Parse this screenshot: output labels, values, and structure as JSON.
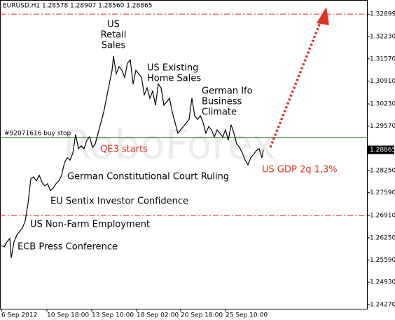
{
  "chart_data": {
    "type": "line",
    "title": "EURUSD,H1  1.28578 1.28907 1.28560 1.28865",
    "watermark": "RoboForex",
    "color": "#000000",
    "x": [
      2,
      6,
      10,
      14,
      16,
      20,
      24,
      28,
      32,
      36,
      40,
      44,
      48,
      52,
      56,
      60,
      64,
      68,
      72,
      76,
      80,
      84,
      88,
      92,
      96,
      100,
      104,
      108,
      112,
      116,
      120,
      124,
      128,
      132,
      136,
      140,
      144,
      148,
      152,
      156,
      160,
      162,
      166,
      170,
      174,
      178,
      182,
      186,
      190,
      194,
      198,
      202,
      206,
      210,
      214,
      218,
      222,
      226,
      230,
      234,
      238,
      242,
      246,
      250,
      254,
      258,
      262,
      266,
      270,
      274,
      278,
      282,
      286,
      290,
      294,
      298,
      302,
      306,
      310,
      314,
      318,
      322,
      326,
      330,
      334,
      338,
      342,
      346,
      350,
      354,
      358,
      362,
      366,
      370,
      374,
      376
    ],
    "values": [
      1.2602,
      1.2598,
      1.2613,
      1.2623,
      1.2565,
      1.2613,
      1.2633,
      1.2644,
      1.2654,
      1.2675,
      1.2727,
      1.28,
      1.2806,
      1.2794,
      1.2811,
      1.279,
      1.2779,
      1.2786,
      1.2765,
      1.2773,
      1.2786,
      1.2794,
      1.2811,
      1.2848,
      1.2863,
      1.2856,
      1.2877,
      1.2932,
      1.289,
      1.2898,
      1.289,
      1.2915,
      1.2925,
      1.2894,
      1.2904,
      1.2936,
      1.2967,
      1.2998,
      1.304,
      1.3082,
      1.3123,
      1.3165,
      1.3113,
      1.3134,
      1.3123,
      1.3102,
      1.3144,
      1.3154,
      1.3082,
      1.3123,
      1.3113,
      1.3102,
      1.305,
      1.3071,
      1.304,
      1.3061,
      1.3019,
      1.3082,
      1.3071,
      1.3019,
      1.3029,
      1.304,
      1.2998,
      1.2967,
      1.2936,
      1.2946,
      1.2956,
      1.2967,
      1.2977,
      1.304,
      1.2988,
      1.2977,
      1.2988,
      1.2967,
      1.2936,
      1.2956,
      1.2946,
      1.2925,
      1.2946,
      1.2936,
      1.2925,
      1.2946,
      1.2915,
      1.2961,
      1.2936,
      1.2904,
      1.2894,
      1.2877,
      1.2856,
      1.2842,
      1.2863,
      1.2873,
      1.2884,
      1.289,
      1.2863,
      1.28865
    ],
    "last_price": 1.28865,
    "xlim": [
      0,
      524
    ],
    "xticks": [
      {
        "value": 2,
        "label": "6 Sep 2012"
      },
      {
        "value": 67,
        "label": "10 Sep 18:00"
      },
      {
        "value": 131,
        "label": "13 Sep 10:00"
      },
      {
        "value": 195,
        "label": "18 Sep 02:00"
      },
      {
        "value": 258,
        "label": "20 Sep 18:00"
      },
      {
        "value": 322,
        "label": "25 Sep 10:00"
      }
    ],
    "ylim": [
      1.2414,
      1.3332
    ],
    "yticks": [
      1.32899,
      {
        "value": 1.3223,
        "label": "1.32230"
      },
      {
        "value": 1.3157,
        "label": "1.31570"
      },
      {
        "value": 1.3091,
        "label": "1.30910"
      },
      {
        "value": 1.3023,
        "label": "1.30230"
      },
      {
        "value": 1.2957,
        "label": "1.29570"
      },
      {
        "value": 1.2825,
        "label": "1.28250"
      },
      {
        "value": 1.2759,
        "label": "1.27590"
      },
      {
        "value": 1.2691,
        "label": "1.26910"
      },
      {
        "value": 1.2625,
        "label": "1.26250"
      },
      {
        "value": 1.2559,
        "label": "1.25590"
      },
      {
        "value": 1.2493,
        "label": "1.24930"
      },
      {
        "value": 1.2427,
        "label": "1.24270"
      }
    ],
    "levels": [
      {
        "value": 1.32899,
        "color": "#e03020"
      },
      {
        "value": 1.2691,
        "color": "#e03020"
      }
    ],
    "stop_order": {
      "label": "#92071616 buy stop",
      "value": 1.2923,
      "color": "#006400"
    },
    "annotations": [
      {
        "lines": [
          "US",
          "Retail",
          "Sales"
        ],
        "color": "#000000"
      },
      {
        "lines": [
          "US Existing",
          "Home Sales"
        ],
        "color": "#000000"
      },
      {
        "lines": [
          "German Ifo",
          "Business",
          "Climate"
        ],
        "color": "#000000"
      },
      {
        "lines": [
          "QE3 starts"
        ],
        "color": "#e03020"
      },
      {
        "lines": [
          "German Constitutional Court Ruling"
        ],
        "color": "#000000"
      },
      {
        "lines": [
          "EU Sentix Investor Confidence"
        ],
        "color": "#000000"
      },
      {
        "lines": [
          "US Non-Farm Employment"
        ],
        "color": "#000000"
      },
      {
        "lines": [
          "ECB Press Conference"
        ],
        "color": "#000000"
      },
      {
        "lines": [
          "US GDP 2q 1,3%"
        ],
        "color": "#e03020"
      }
    ]
  }
}
